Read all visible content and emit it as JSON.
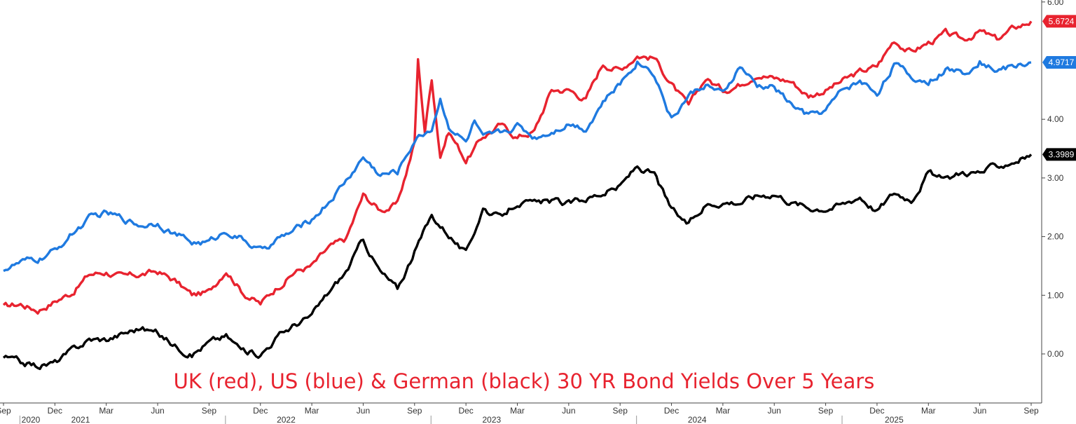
{
  "chart_data": {
    "type": "line",
    "title": "UK (red), US (blue) & German (black) 30 YR Bond Yields Over 5 Years",
    "title_color": "#e8232f",
    "ylim": [
      -0.65,
      6.0
    ],
    "y_ticks": [
      "0.00",
      "1.00",
      "2.00",
      "3.00",
      "4.00",
      "6.00"
    ],
    "y_tick_values": [
      0,
      1,
      2,
      3,
      4,
      6
    ],
    "x_ticks": [
      "Sep",
      "Dec",
      "Mar",
      "Jun",
      "Sep",
      "Dec",
      "Mar",
      "Jun",
      "Sep",
      "Dec",
      "Mar",
      "Jun",
      "Sep",
      "Dec",
      "Mar",
      "Jun",
      "Sep",
      "Dec",
      "Mar",
      "Jun",
      "Sep"
    ],
    "x_tick_months": [
      0,
      3,
      6,
      9,
      12,
      15,
      18,
      21,
      24,
      27,
      30,
      33,
      36,
      39,
      42,
      45,
      48,
      51,
      54,
      57,
      60
    ],
    "years": [
      "2020",
      "2021",
      "2022",
      "2023",
      "2024",
      "2025"
    ],
    "year_months": [
      -1,
      4.5,
      16.5,
      28.5,
      40.5,
      52
    ],
    "year_dividers": [
      1,
      13,
      25,
      37,
      49
    ],
    "series": [
      {
        "color": "#e8232f",
        "last_label": "5.6724",
        "points": [
          [
            0,
            0.8
          ],
          [
            1,
            0.85
          ],
          [
            2,
            0.75
          ],
          [
            3,
            0.9
          ],
          [
            4,
            1.05
          ],
          [
            5,
            1.35
          ],
          [
            6,
            1.4
          ],
          [
            7,
            1.3
          ],
          [
            8,
            1.35
          ],
          [
            9,
            1.4
          ],
          [
            10,
            1.25
          ],
          [
            11,
            1.0
          ],
          [
            12,
            1.05
          ],
          [
            13,
            1.45
          ],
          [
            14,
            1.05
          ],
          [
            15,
            0.85
          ],
          [
            16,
            1.15
          ],
          [
            17,
            1.4
          ],
          [
            18,
            1.5
          ],
          [
            19,
            1.8
          ],
          [
            20,
            1.95
          ],
          [
            21,
            2.7
          ],
          [
            22,
            2.45
          ],
          [
            23,
            2.55
          ],
          [
            24,
            3.6
          ],
          [
            24.2,
            5.0
          ],
          [
            24.6,
            3.8
          ],
          [
            25,
            4.7
          ],
          [
            25.5,
            3.4
          ],
          [
            26,
            3.8
          ],
          [
            27,
            3.3
          ],
          [
            28,
            3.7
          ],
          [
            29,
            3.9
          ],
          [
            30,
            3.7
          ],
          [
            31,
            3.8
          ],
          [
            32,
            4.5
          ],
          [
            33,
            4.5
          ],
          [
            34,
            4.35
          ],
          [
            35,
            4.95
          ],
          [
            36,
            4.85
          ],
          [
            37,
            5.1
          ],
          [
            38,
            5.05
          ],
          [
            39,
            4.6
          ],
          [
            40,
            4.2
          ],
          [
            41,
            4.7
          ],
          [
            42,
            4.5
          ],
          [
            43,
            4.6
          ],
          [
            44,
            4.8
          ],
          [
            45,
            4.7
          ],
          [
            46,
            4.65
          ],
          [
            47,
            4.4
          ],
          [
            48,
            4.5
          ],
          [
            49,
            4.65
          ],
          [
            50,
            4.8
          ],
          [
            51,
            4.9
          ],
          [
            52,
            5.35
          ],
          [
            53,
            5.15
          ],
          [
            54,
            5.3
          ],
          [
            55,
            5.45
          ],
          [
            56,
            5.35
          ],
          [
            57,
            5.5
          ],
          [
            58,
            5.35
          ],
          [
            59,
            5.55
          ],
          [
            60,
            5.67
          ]
        ]
      },
      {
        "color": "#1f7ae0",
        "last_label": "4.9717",
        "points": [
          [
            0,
            1.45
          ],
          [
            1,
            1.55
          ],
          [
            2,
            1.6
          ],
          [
            3,
            1.75
          ],
          [
            4,
            2.05
          ],
          [
            5,
            2.3
          ],
          [
            6,
            2.4
          ],
          [
            7,
            2.3
          ],
          [
            8,
            2.2
          ],
          [
            9,
            2.25
          ],
          [
            10,
            2.05
          ],
          [
            11,
            1.9
          ],
          [
            12,
            1.9
          ],
          [
            13,
            2.1
          ],
          [
            14,
            1.95
          ],
          [
            15,
            1.75
          ],
          [
            16,
            1.95
          ],
          [
            17,
            2.1
          ],
          [
            18,
            2.3
          ],
          [
            19,
            2.6
          ],
          [
            20,
            2.95
          ],
          [
            21,
            3.35
          ],
          [
            22,
            3.05
          ],
          [
            23,
            3.1
          ],
          [
            24,
            3.65
          ],
          [
            25,
            3.85
          ],
          [
            25.5,
            4.35
          ],
          [
            26,
            3.9
          ],
          [
            27,
            3.6
          ],
          [
            27.5,
            3.95
          ],
          [
            28,
            3.65
          ],
          [
            29,
            3.75
          ],
          [
            30,
            3.9
          ],
          [
            31,
            3.7
          ],
          [
            32,
            3.8
          ],
          [
            33,
            3.95
          ],
          [
            34,
            3.85
          ],
          [
            35,
            4.3
          ],
          [
            36,
            4.6
          ],
          [
            37,
            5.0
          ],
          [
            38,
            4.8
          ],
          [
            39,
            4.0
          ],
          [
            40,
            4.4
          ],
          [
            41,
            4.6
          ],
          [
            42,
            4.4
          ],
          [
            43,
            4.9
          ],
          [
            44,
            4.55
          ],
          [
            45,
            4.55
          ],
          [
            46,
            4.25
          ],
          [
            47,
            4.05
          ],
          [
            48,
            4.15
          ],
          [
            49,
            4.5
          ],
          [
            50,
            4.65
          ],
          [
            51,
            4.45
          ],
          [
            52,
            4.95
          ],
          [
            53,
            4.7
          ],
          [
            54,
            4.65
          ],
          [
            55,
            4.85
          ],
          [
            56,
            4.8
          ],
          [
            57,
            5.0
          ],
          [
            58,
            4.85
          ],
          [
            59,
            4.9
          ],
          [
            60,
            4.97
          ]
        ]
      },
      {
        "color": "#000000",
        "last_label": "3.3989",
        "points": [
          [
            0,
            -0.05
          ],
          [
            1,
            -0.15
          ],
          [
            2,
            -0.2
          ],
          [
            3,
            -0.15
          ],
          [
            4,
            0.05
          ],
          [
            5,
            0.25
          ],
          [
            6,
            0.25
          ],
          [
            7,
            0.35
          ],
          [
            8,
            0.45
          ],
          [
            9,
            0.35
          ],
          [
            10,
            0.15
          ],
          [
            11,
            0.0
          ],
          [
            12,
            0.2
          ],
          [
            13,
            0.3
          ],
          [
            14,
            0.05
          ],
          [
            15,
            0.0
          ],
          [
            16,
            0.3
          ],
          [
            17,
            0.5
          ],
          [
            18,
            0.65
          ],
          [
            19,
            1.05
          ],
          [
            20,
            1.4
          ],
          [
            21,
            1.95
          ],
          [
            22,
            1.4
          ],
          [
            23,
            1.1
          ],
          [
            24,
            1.75
          ],
          [
            25,
            2.35
          ],
          [
            26,
            2.05
          ],
          [
            27,
            1.7
          ],
          [
            28,
            2.5
          ],
          [
            29,
            2.3
          ],
          [
            30,
            2.6
          ],
          [
            31,
            2.55
          ],
          [
            32,
            2.6
          ],
          [
            33,
            2.55
          ],
          [
            34,
            2.65
          ],
          [
            35,
            2.75
          ],
          [
            36,
            2.85
          ],
          [
            37,
            3.2
          ],
          [
            38,
            3.05
          ],
          [
            39,
            2.45
          ],
          [
            40,
            2.2
          ],
          [
            41,
            2.55
          ],
          [
            42,
            2.6
          ],
          [
            43,
            2.6
          ],
          [
            44,
            2.7
          ],
          [
            45,
            2.75
          ],
          [
            46,
            2.6
          ],
          [
            47,
            2.5
          ],
          [
            48,
            2.5
          ],
          [
            49,
            2.55
          ],
          [
            50,
            2.7
          ],
          [
            51,
            2.45
          ],
          [
            52,
            2.75
          ],
          [
            53,
            2.65
          ],
          [
            54,
            3.1
          ],
          [
            55,
            2.95
          ],
          [
            56,
            3.1
          ],
          [
            57,
            3.1
          ],
          [
            58,
            3.2
          ],
          [
            59,
            3.3
          ],
          [
            60,
            3.4
          ]
        ]
      }
    ]
  }
}
